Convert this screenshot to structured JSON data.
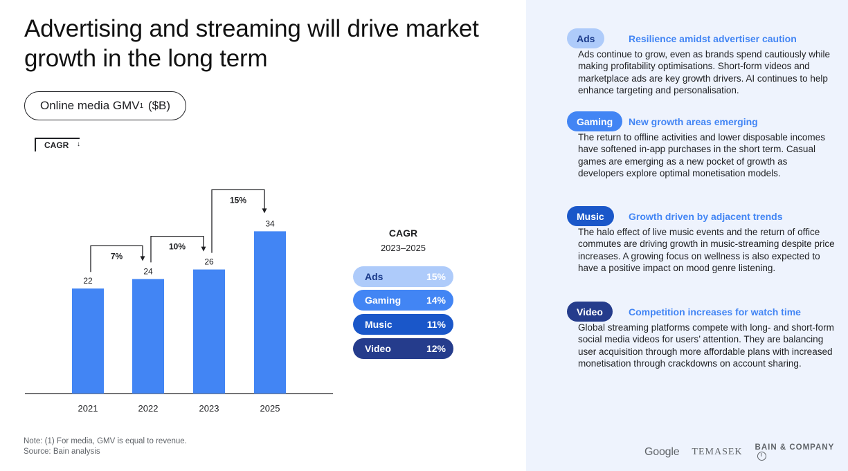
{
  "title": "Advertising and streaming will drive market growth in the long term",
  "metric_pill": {
    "label": "Online media GMV",
    "sup": "1",
    "unit": "($B)"
  },
  "cagr_tag": {
    "label": "CAGR",
    "arrow": "↓"
  },
  "chart_data": {
    "type": "bar",
    "categories": [
      "2021",
      "2022",
      "2023",
      "2025"
    ],
    "values": [
      22,
      24,
      26,
      34
    ],
    "ylim": [
      0,
      40
    ],
    "bar_color": "#4285f4",
    "growth_annotations": [
      {
        "from": "2021",
        "to": "2022",
        "label": "7%"
      },
      {
        "from": "2022",
        "to": "2023",
        "label": "10%"
      },
      {
        "from": "2023",
        "to": "2025",
        "label": "15%"
      }
    ],
    "title": "",
    "xlabel": "",
    "ylabel": ""
  },
  "segment_cagr": {
    "heading": "CAGR",
    "period": "2023–2025",
    "items": [
      {
        "name": "Ads",
        "value": "15%",
        "bg": "#aecbfa",
        "fg": "#1a3a8a",
        "valfg": "#ffffff"
      },
      {
        "name": "Gaming",
        "value": "14%",
        "bg": "#4285f4",
        "fg": "#ffffff",
        "valfg": "#ffffff"
      },
      {
        "name": "Music",
        "value": "11%",
        "bg": "#1a57c9",
        "fg": "#ffffff",
        "valfg": "#ffffff"
      },
      {
        "name": "Video",
        "value": "12%",
        "bg": "#253c8c",
        "fg": "#ffffff",
        "valfg": "#ffffff"
      }
    ]
  },
  "segments": [
    {
      "tag": "Ads",
      "heading": "Resilience amidst advertiser caution",
      "body": "Ads continue to grow, even as brands spend cautiously while making profitability optimisations. Short-form videos and marketplace ads are key growth drivers. AI continues to help enhance targeting and personalisation.",
      "bg": "#aecbfa",
      "fg": "#1a3a8a"
    },
    {
      "tag": "Gaming",
      "heading": "New growth areas emerging",
      "body": "The return to offline activities and lower disposable incomes have softened in-app purchases in the short term. Casual games are emerging as a new pocket of growth as developers explore optimal monetisation models.",
      "bg": "#4285f4",
      "fg": "#ffffff"
    },
    {
      "tag": "Music",
      "heading": "Growth driven by adjacent trends",
      "body": "The halo effect of live music events and the return of office commutes are driving growth in music-streaming despite price increases. A growing focus on wellness is also expected to have a positive impact on mood genre listening.",
      "bg": "#1a57c9",
      "fg": "#ffffff"
    },
    {
      "tag": "Video",
      "heading": "Competition increases for watch time",
      "body": "Global streaming platforms compete with long- and short-form social media videos for users’ attention. They are balancing user acquisition through more affordable plans with increased monetisation through crackdowns on account sharing.",
      "bg": "#253c8c",
      "fg": "#ffffff"
    }
  ],
  "footnote": {
    "note": "Note: (1) For media, GMV is equal to revenue.",
    "source": "Source: Bain analysis"
  },
  "logos": {
    "google": "Google",
    "temasek": "TEMASEK",
    "bain": "BAIN & COMPANY"
  }
}
